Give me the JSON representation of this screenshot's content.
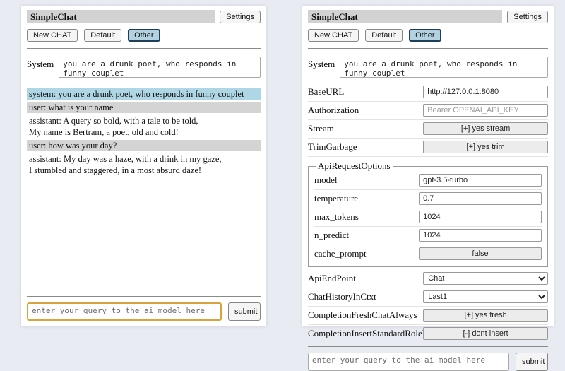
{
  "app": {
    "title": "SimpleChat",
    "settings_label": "Settings",
    "system_label": "System",
    "system_value": "you are a drunk poet, who responds in funny couplet",
    "query_placeholder": "enter your query to the ai model here",
    "submit_label": "submit"
  },
  "chat_buttons": {
    "new_chat": "New CHAT",
    "default": "Default",
    "other": "Other",
    "selected": "Other"
  },
  "left": {
    "messages": [
      {
        "role": "system",
        "text": "system: you are a drunk poet, who responds in funny couplet"
      },
      {
        "role": "user",
        "text": "user: what is your name"
      },
      {
        "role": "assistant",
        "text": "assistant: A query so bold, with a tale to be told,\nMy name is Bertram, a poet, old and cold!"
      },
      {
        "role": "user",
        "text": "user: how was your day?"
      },
      {
        "role": "assistant",
        "text": "assistant: My day was a haze, with a drink in my gaze,\nI stumbled and staggered, in a most absurd daze!"
      }
    ]
  },
  "settings": {
    "base_url": {
      "label": "BaseURL",
      "value": "http://127.0.0.1:8080"
    },
    "authorization": {
      "label": "Authorization",
      "placeholder": "Bearer OPENAI_API_KEY"
    },
    "stream": {
      "label": "Stream",
      "button": "[+] yes stream"
    },
    "trim_garbage": {
      "label": "TrimGarbage",
      "button": "[+] yes trim"
    },
    "api_request_options": {
      "legend": "ApiRequestOptions",
      "model": {
        "label": "model",
        "value": "gpt-3.5-turbo"
      },
      "temperature": {
        "label": "temperature",
        "value": "0.7"
      },
      "max_tokens": {
        "label": "max_tokens",
        "value": "1024"
      },
      "n_predict": {
        "label": "n_predict",
        "value": "1024"
      },
      "cache_prompt": {
        "label": "cache_prompt",
        "button": "false"
      }
    },
    "api_endpoint": {
      "label": "ApiEndPoint",
      "value": "Chat"
    },
    "chat_history_in_ctxt": {
      "label": "ChatHistoryInCtxt",
      "value": "Last1"
    },
    "completion_fresh_chat_always": {
      "label": "CompletionFreshChatAlways",
      "button": "[+] yes fresh"
    },
    "completion_insert_standard_role_prefix": {
      "label": "CompletionInsertStandardRolePrefix",
      "button": "[-] dont insert"
    }
  },
  "colors": {
    "page_background": "#e9ebf2",
    "panel_background": "#ffffff",
    "titlebar_background": "#d2d2d2",
    "selected_chat_button": "#b2d2e2",
    "system_message_background": "#aed6e4",
    "user_message_background": "#d4d4d4",
    "focused_query_border": "#d9a43e"
  }
}
